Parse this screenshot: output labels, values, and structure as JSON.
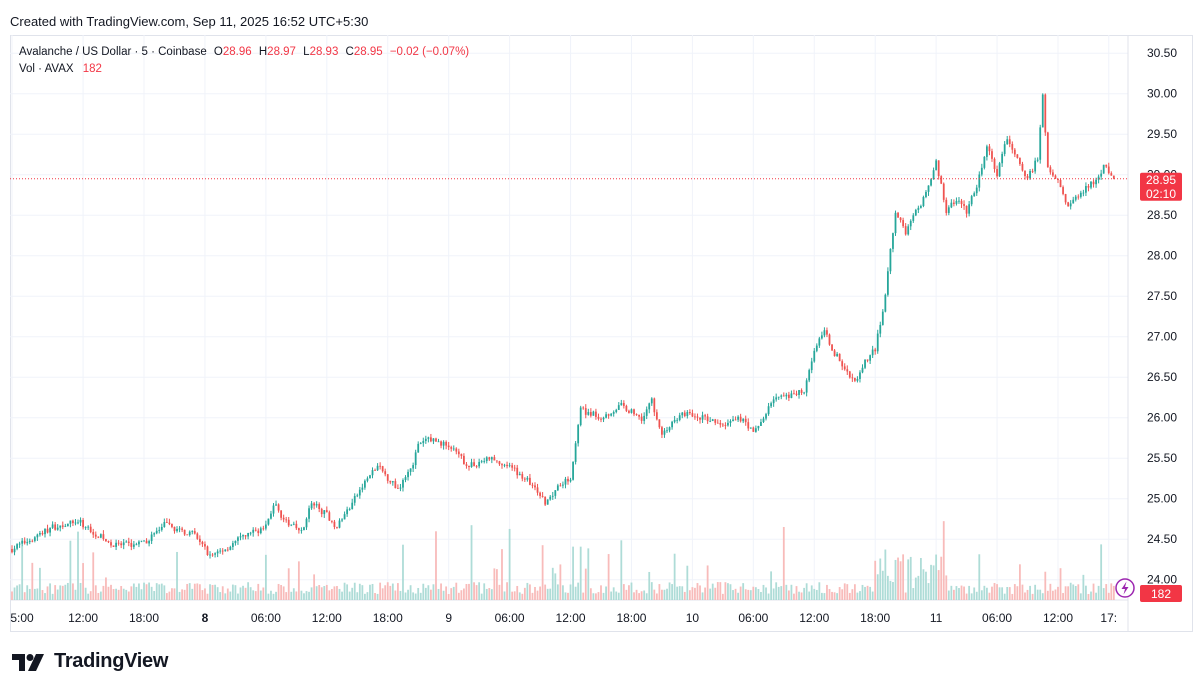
{
  "header": {
    "text": "Created with TradingView.com, Sep 11, 2025 16:52 UTC+5:30"
  },
  "legend": {
    "symbol": "Avalanche / US Dollar · 5 · Coinbase",
    "o_label": "O",
    "o_value": "28.96",
    "h_label": "H",
    "h_value": "28.97",
    "l_label": "L",
    "l_value": "28.93",
    "c_label": "C",
    "c_value": "28.95",
    "change": "−0.02 (−0.07%)",
    "vol_label": "Vol · AVAX",
    "vol_value": "182"
  },
  "price_badge": {
    "price": "28.95",
    "countdown": "02:10"
  },
  "volume_badge": "182",
  "footer": {
    "brand": "TradingView"
  },
  "colors": {
    "up": "#26a69a",
    "down": "#ef5350",
    "badge": "#f23645",
    "grid": "#f0f3fa"
  },
  "chart_data": {
    "type": "candlestick",
    "title": "Avalanche / US Dollar · 5 · Coinbase",
    "y_ticks": [
      "30.50",
      "30.00",
      "29.50",
      "29.00",
      "28.50",
      "28.00",
      "27.50",
      "27.00",
      "26.50",
      "26.00",
      "25.50",
      "25.00",
      "24.50",
      "24.00"
    ],
    "ylim": [
      23.75,
      30.7
    ],
    "x_ticks": [
      {
        "label": "5:00",
        "bold": false,
        "t": 0
      },
      {
        "label": "12:00",
        "bold": false,
        "t": 7
      },
      {
        "label": "18:00",
        "bold": false,
        "t": 13
      },
      {
        "label": "8",
        "bold": true,
        "t": 19
      },
      {
        "label": "06:00",
        "bold": false,
        "t": 25
      },
      {
        "label": "12:00",
        "bold": false,
        "t": 31
      },
      {
        "label": "18:00",
        "bold": false,
        "t": 37
      },
      {
        "label": "9",
        "bold": false,
        "t": 43
      },
      {
        "label": "06:00",
        "bold": false,
        "t": 49
      },
      {
        "label": "12:00",
        "bold": false,
        "t": 55
      },
      {
        "label": "18:00",
        "bold": false,
        "t": 61
      },
      {
        "label": "10",
        "bold": false,
        "t": 67
      },
      {
        "label": "06:00",
        "bold": false,
        "t": 73
      },
      {
        "label": "12:00",
        "bold": false,
        "t": 79
      },
      {
        "label": "18:00",
        "bold": false,
        "t": 85
      },
      {
        "label": "11",
        "bold": false,
        "t": 91
      },
      {
        "label": "06:00",
        "bold": false,
        "t": 97
      },
      {
        "label": "12:00",
        "bold": false,
        "t": 103
      },
      {
        "label": "17:",
        "bold": false,
        "t": 108
      }
    ],
    "x_range_hours": [
      0,
      109.5
    ],
    "price_path": [
      {
        "t": 0,
        "p": 24.38
      },
      {
        "t": 4,
        "p": 24.65
      },
      {
        "t": 6.5,
        "p": 24.72
      },
      {
        "t": 10,
        "p": 24.42
      },
      {
        "t": 13,
        "p": 24.45
      },
      {
        "t": 15,
        "p": 24.68
      },
      {
        "t": 18,
        "p": 24.55
      },
      {
        "t": 19.5,
        "p": 24.3
      },
      {
        "t": 21,
        "p": 24.38
      },
      {
        "t": 23,
        "p": 24.55
      },
      {
        "t": 25,
        "p": 24.65
      },
      {
        "t": 25.8,
        "p": 24.95
      },
      {
        "t": 27,
        "p": 24.7
      },
      {
        "t": 28.5,
        "p": 24.6
      },
      {
        "t": 29.5,
        "p": 24.95
      },
      {
        "t": 31,
        "p": 24.8
      },
      {
        "t": 32,
        "p": 24.65
      },
      {
        "t": 33,
        "p": 24.85
      },
      {
        "t": 35,
        "p": 25.25
      },
      {
        "t": 36,
        "p": 25.4
      },
      {
        "t": 38,
        "p": 25.12
      },
      {
        "t": 39.5,
        "p": 25.45
      },
      {
        "t": 40,
        "p": 25.65
      },
      {
        "t": 41,
        "p": 25.75
      },
      {
        "t": 43,
        "p": 25.65
      },
      {
        "t": 45,
        "p": 25.4
      },
      {
        "t": 47,
        "p": 25.5
      },
      {
        "t": 49,
        "p": 25.4
      },
      {
        "t": 51,
        "p": 25.2
      },
      {
        "t": 52.5,
        "p": 24.95
      },
      {
        "t": 54,
        "p": 25.2
      },
      {
        "t": 55,
        "p": 25.25
      },
      {
        "t": 56,
        "p": 26.1
      },
      {
        "t": 58,
        "p": 26.0
      },
      {
        "t": 60,
        "p": 26.15
      },
      {
        "t": 62,
        "p": 26.0
      },
      {
        "t": 63,
        "p": 26.2
      },
      {
        "t": 64,
        "p": 25.8
      },
      {
        "t": 66,
        "p": 26.05
      },
      {
        "t": 68,
        "p": 26.0
      },
      {
        "t": 70,
        "p": 25.9
      },
      {
        "t": 72,
        "p": 26.0
      },
      {
        "t": 73,
        "p": 25.8
      },
      {
        "t": 74,
        "p": 26.0
      },
      {
        "t": 75,
        "p": 26.25
      },
      {
        "t": 76.5,
        "p": 26.25
      },
      {
        "t": 78,
        "p": 26.35
      },
      {
        "t": 79,
        "p": 26.85
      },
      {
        "t": 80,
        "p": 27.05
      },
      {
        "t": 81,
        "p": 26.8
      },
      {
        "t": 82,
        "p": 26.6
      },
      {
        "t": 83,
        "p": 26.45
      },
      {
        "t": 84,
        "p": 26.7
      },
      {
        "t": 85,
        "p": 26.85
      },
      {
        "t": 86,
        "p": 27.5
      },
      {
        "t": 86.5,
        "p": 28.05
      },
      {
        "t": 87,
        "p": 28.55
      },
      {
        "t": 88,
        "p": 28.3
      },
      {
        "t": 89,
        "p": 28.55
      },
      {
        "t": 90,
        "p": 28.75
      },
      {
        "t": 91,
        "p": 29.15
      },
      {
        "t": 92,
        "p": 28.55
      },
      {
        "t": 93,
        "p": 28.7
      },
      {
        "t": 94,
        "p": 28.55
      },
      {
        "t": 95,
        "p": 28.85
      },
      {
        "t": 96,
        "p": 29.35
      },
      {
        "t": 97,
        "p": 29.0
      },
      {
        "t": 98,
        "p": 29.45
      },
      {
        "t": 99,
        "p": 29.2
      },
      {
        "t": 100,
        "p": 28.95
      },
      {
        "t": 101,
        "p": 29.2
      },
      {
        "t": 101.5,
        "p": 29.95
      },
      {
        "t": 102,
        "p": 29.1
      },
      {
        "t": 103,
        "p": 28.95
      },
      {
        "t": 104,
        "p": 28.6
      },
      {
        "t": 105,
        "p": 28.75
      },
      {
        "t": 106,
        "p": 28.85
      },
      {
        "t": 107,
        "p": 28.95
      },
      {
        "t": 107.5,
        "p": 29.1
      },
      {
        "t": 108.5,
        "p": 28.95
      }
    ],
    "last_price": 28.95,
    "volume_label": "Vol · AVAX",
    "last_volume": 182
  }
}
